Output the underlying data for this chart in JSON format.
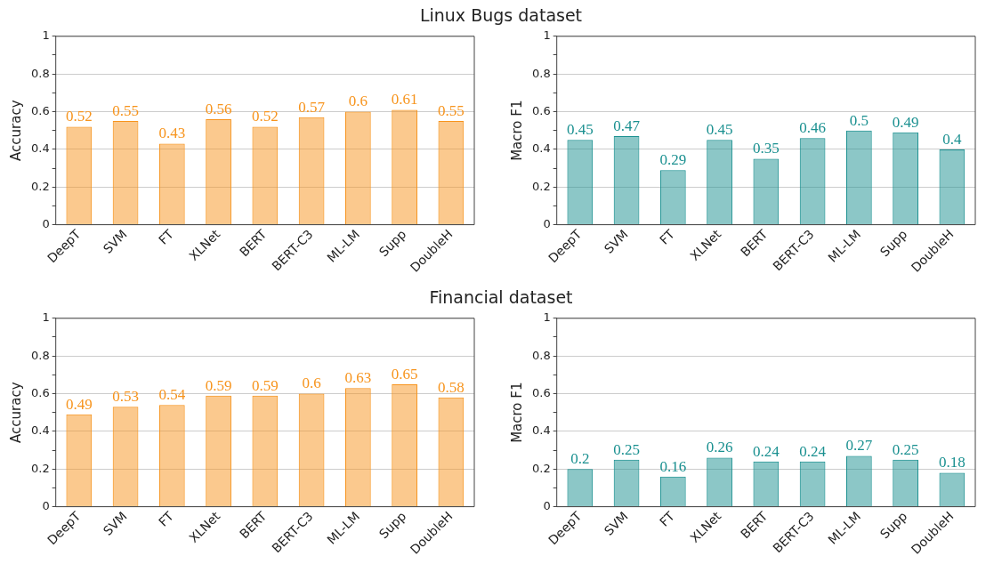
{
  "chart_data": [
    {
      "type": "bar",
      "title": "Linux Bugs dataset",
      "ylabel": "Accuracy",
      "categories": [
        "DeepT",
        "SVM",
        "FT",
        "XLNet",
        "BERT",
        "BERT-C3",
        "ML-LM",
        "Supp",
        "DoubleH"
      ],
      "series": [
        {
          "color": "#f7941d",
          "values": [
            0.52,
            0.55,
            0.43,
            0.56,
            0.52,
            0.57,
            0.6,
            0.61,
            0.55
          ]
        }
      ],
      "ylim": [
        0,
        1
      ],
      "yticks": [
        0,
        {
          "value": 0.1,
          "label": null
        },
        0.2,
        {
          "value": 0.3,
          "label": null
        },
        0.4,
        {
          "value": 0.5,
          "label": null
        },
        0.6,
        {
          "value": 0.7,
          "label": null
        },
        0.8,
        {
          "value": 0.9,
          "label": null
        },
        1
      ],
      "grid": "y",
      "data_labels": true,
      "legend": false
    },
    {
      "type": "bar",
      "ylabel": "Macro F1",
      "categories": [
        "DeepT",
        "SVM",
        "FT",
        "XLNet",
        "BERT",
        "BERT-C3",
        "ML-LM",
        "Supp",
        "DoubleH"
      ],
      "series": [
        {
          "color": "#1a9090",
          "values": [
            0.45,
            0.47,
            0.29,
            0.45,
            0.35,
            0.46,
            0.5,
            0.49,
            0.4
          ]
        }
      ],
      "ylim": [
        0,
        1
      ],
      "yticks": [
        0,
        {
          "value": 0.1,
          "label": null
        },
        0.2,
        {
          "value": 0.3,
          "label": null
        },
        0.4,
        {
          "value": 0.5,
          "label": null
        },
        0.6,
        {
          "value": 0.7,
          "label": null
        },
        0.8,
        {
          "value": 0.9,
          "label": null
        },
        1
      ],
      "grid": "y",
      "data_labels": true,
      "legend": false
    },
    {
      "type": "bar",
      "title": "Financial dataset",
      "ylabel": "Accuracy",
      "categories": [
        "DeepT",
        "SVM",
        "FT",
        "XLNet",
        "BERT",
        "BERT-C3",
        "ML-LM",
        "Supp",
        "DoubleH"
      ],
      "series": [
        {
          "color": "#f7941d",
          "values": [
            0.49,
            0.53,
            0.54,
            0.59,
            0.59,
            0.6,
            0.63,
            0.65,
            0.58
          ]
        }
      ],
      "ylim": [
        0,
        1
      ],
      "yticks": [
        0,
        {
          "value": 0.1,
          "label": null
        },
        0.2,
        {
          "value": 0.3,
          "label": null
        },
        0.4,
        {
          "value": 0.5,
          "label": null
        },
        0.6,
        {
          "value": 0.7,
          "label": null
        },
        0.8,
        {
          "value": 0.9,
          "label": null
        },
        1
      ],
      "grid": "y",
      "data_labels": true,
      "legend": false
    },
    {
      "type": "bar",
      "ylabel": "Macro F1",
      "categories": [
        "DeepT",
        "SVM",
        "FT",
        "XLNet",
        "BERT",
        "BERT-C3",
        "ML-LM",
        "Supp",
        "DoubleH"
      ],
      "series": [
        {
          "color": "#1a9090",
          "values": [
            0.2,
            0.25,
            0.16,
            0.26,
            0.24,
            0.24,
            0.27,
            0.25,
            0.18
          ]
        }
      ],
      "ylim": [
        0,
        1
      ],
      "yticks": [
        0,
        {
          "value": 0.1,
          "label": null
        },
        0.2,
        {
          "value": 0.3,
          "label": null
        },
        0.4,
        {
          "value": 0.5,
          "label": null
        },
        0.6,
        {
          "value": 0.7,
          "label": null
        },
        0.8,
        {
          "value": 0.9,
          "label": null
        },
        1
      ],
      "grid": "y",
      "data_labels": true,
      "legend": false
    }
  ]
}
